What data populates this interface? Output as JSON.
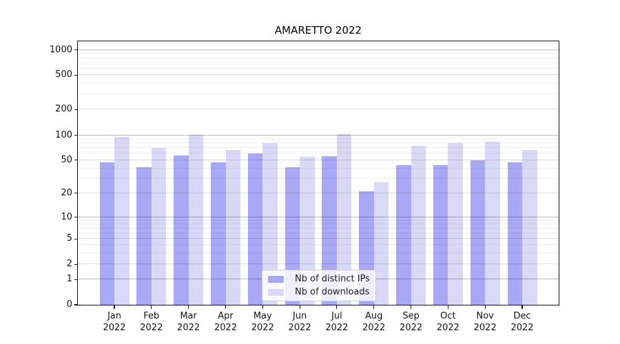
{
  "chart_data": {
    "type": "bar",
    "title": "AMARETTO 2022",
    "categories": [
      "Jan\n2022",
      "Feb\n2022",
      "Mar\n2022",
      "Apr\n2022",
      "May\n2022",
      "Jun\n2022",
      "Jul\n2022",
      "Aug\n2022",
      "Sep\n2022",
      "Oct\n2022",
      "Nov\n2022",
      "Dec\n2022"
    ],
    "series": [
      {
        "name": "Nb of distinct IPs",
        "color": "#a8a8f5",
        "values": [
          47,
          41,
          57,
          47,
          61,
          41,
          56,
          21,
          44,
          44,
          50,
          47
        ]
      },
      {
        "name": "Nb of downloads",
        "color": "#d9d9f7",
        "values": [
          95,
          71,
          101,
          66,
          80,
          55,
          104,
          27,
          74,
          80,
          83,
          66
        ]
      }
    ],
    "xlabel": "",
    "ylabel": "",
    "yscale": "symlog",
    "yticks": [
      0,
      1,
      2,
      5,
      10,
      20,
      50,
      100,
      200,
      500,
      1000
    ],
    "ylim": [
      0,
      1300
    ],
    "grid": "horizontal, major and minor, drawn above bars",
    "legend_position": "lower center inside plot"
  }
}
